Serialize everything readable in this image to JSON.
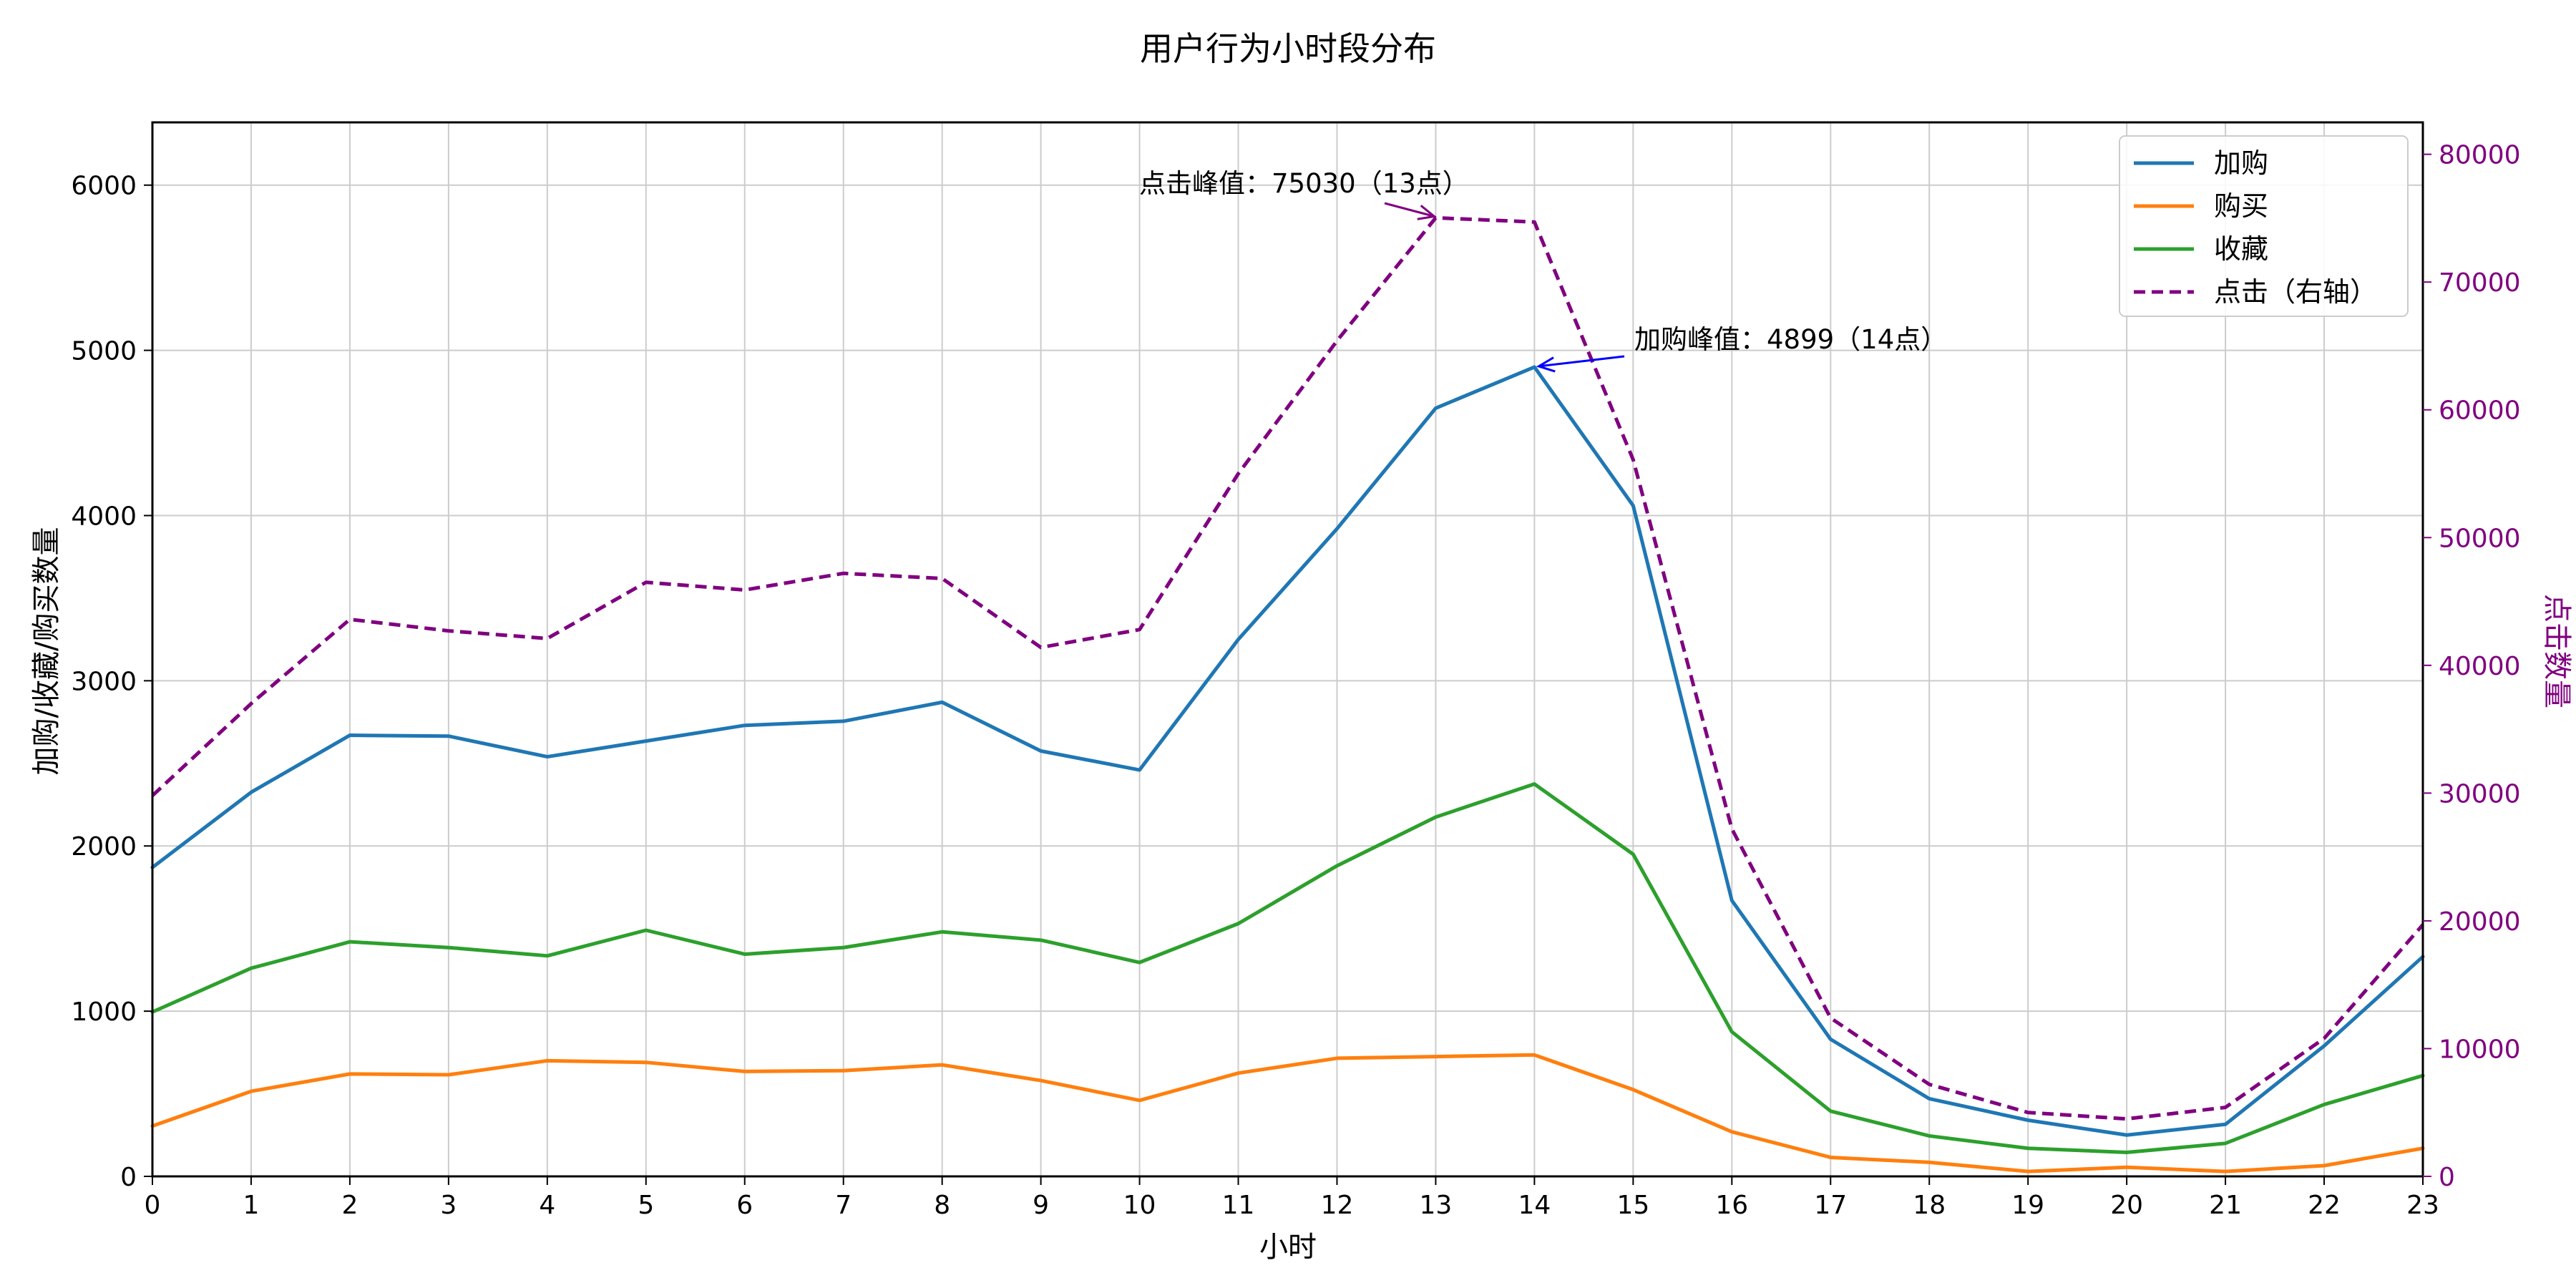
{
  "chart_data": {
    "type": "line",
    "title": "用户行为小时段分布",
    "xlabel": "小时",
    "ylabel": "加购/收藏/购买数量",
    "y2label": "点击数量",
    "x": [
      0,
      1,
      2,
      3,
      4,
      5,
      6,
      7,
      8,
      9,
      10,
      11,
      12,
      13,
      14,
      15,
      16,
      17,
      18,
      19,
      20,
      21,
      22,
      23
    ],
    "xlim": [
      0,
      23
    ],
    "ylim": [
      0,
      6380
    ],
    "y2lim": [
      0,
      82500
    ],
    "yticks": [
      0,
      1000,
      2000,
      3000,
      4000,
      5000,
      6000
    ],
    "y2ticks": [
      0,
      10000,
      20000,
      30000,
      40000,
      50000,
      60000,
      70000,
      80000
    ],
    "grid": true,
    "legend_position": "top-right",
    "series": [
      {
        "name": "加购",
        "axis": "left",
        "color": "#1f77b4",
        "dashed": false,
        "values": [
          1870,
          2325,
          2670,
          2665,
          2540,
          2635,
          2730,
          2755,
          2870,
          2575,
          2460,
          3250,
          3920,
          4650,
          4899,
          4060,
          1670,
          830,
          470,
          340,
          250,
          315,
          790,
          1330
        ]
      },
      {
        "name": "购买",
        "axis": "left",
        "color": "#ff7f0e",
        "dashed": false,
        "values": [
          305,
          515,
          620,
          615,
          700,
          690,
          635,
          640,
          675,
          580,
          460,
          625,
          715,
          725,
          735,
          525,
          270,
          115,
          85,
          30,
          55,
          30,
          65,
          170
        ]
      },
      {
        "name": "收藏",
        "axis": "left",
        "color": "#2ca02c",
        "dashed": false,
        "values": [
          995,
          1260,
          1420,
          1385,
          1335,
          1490,
          1345,
          1385,
          1480,
          1430,
          1295,
          1530,
          1880,
          2175,
          2375,
          1950,
          875,
          395,
          245,
          170,
          145,
          200,
          435,
          610
        ]
      },
      {
        "name": "点击（右轴）",
        "axis": "right",
        "color": "#800080",
        "dashed": true,
        "values": [
          29800,
          37000,
          43600,
          42700,
          42100,
          46500,
          45900,
          47200,
          46800,
          41400,
          42800,
          55000,
          65400,
          75030,
          74700,
          56100,
          27200,
          12400,
          7200,
          5000,
          4500,
          5400,
          10800,
          19700
        ]
      }
    ],
    "annotations": [
      {
        "text": "点击峰值：75030（13点）",
        "x": 13,
        "y": 75030,
        "axis": "right",
        "color": "#800080"
      },
      {
        "text": "加购峰值：4899（14点）",
        "x": 14,
        "y": 4899,
        "axis": "left",
        "color": "#0000ff"
      }
    ]
  }
}
